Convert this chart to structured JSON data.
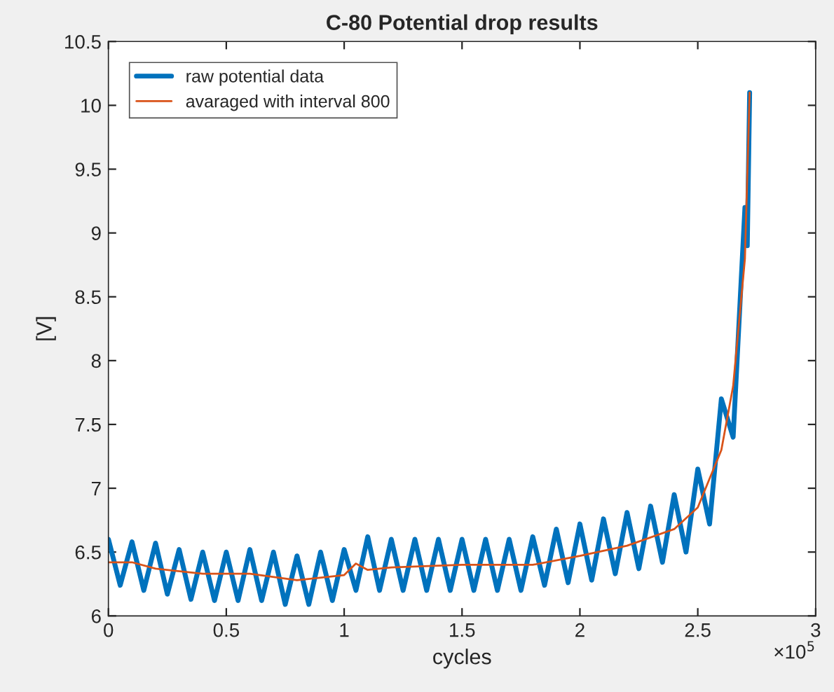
{
  "chart_data": {
    "type": "line",
    "title": "C-80 Potential drop results",
    "xlabel": "cycles",
    "ylabel": "[V]",
    "xlim": [
      0,
      3
    ],
    "xticks": [
      0,
      0.5,
      1,
      1.5,
      2,
      2.5,
      3
    ],
    "ylim": [
      6,
      10.5
    ],
    "yticks": [
      6,
      6.5,
      7,
      7.5,
      8,
      8.5,
      9,
      9.5,
      10,
      10.5
    ],
    "annotations": [
      "×10$^{5}$"
    ],
    "legend": "top left",
    "grid": false,
    "series": [
      {
        "name": "raw potential data",
        "color": "#0072bd",
        "x": [
          0,
          0.05,
          0.1,
          0.15,
          0.2,
          0.25,
          0.3,
          0.35,
          0.4,
          0.45,
          0.5,
          0.55,
          0.6,
          0.65,
          0.7,
          0.75,
          0.8,
          0.85,
          0.9,
          0.95,
          1,
          1.05,
          1.1,
          1.15,
          1.2,
          1.25,
          1.3,
          1.35,
          1.4,
          1.45,
          1.5,
          1.55,
          1.6,
          1.65,
          1.7,
          1.75,
          1.8,
          1.85,
          1.9,
          1.95,
          2,
          2.05,
          2.1,
          2.15,
          2.2,
          2.25,
          2.3,
          2.35,
          2.4,
          2.45,
          2.5,
          2.55,
          2.6,
          2.65,
          2.7,
          2.71,
          2.72
        ],
        "values": [
          6.6,
          6.24,
          6.58,
          6.2,
          6.57,
          6.17,
          6.52,
          6.13,
          6.5,
          6.12,
          6.5,
          6.12,
          6.52,
          6.12,
          6.5,
          6.09,
          6.47,
          6.09,
          6.5,
          6.12,
          6.52,
          6.2,
          6.62,
          6.2,
          6.6,
          6.2,
          6.6,
          6.2,
          6.6,
          6.2,
          6.6,
          6.2,
          6.6,
          6.2,
          6.6,
          6.2,
          6.62,
          6.24,
          6.68,
          6.26,
          6.72,
          6.28,
          6.76,
          6.33,
          6.81,
          6.37,
          6.86,
          6.42,
          6.95,
          6.5,
          7.15,
          6.72,
          7.7,
          7.4,
          9.2,
          8.9,
          10.1
        ]
      },
      {
        "name": "avaraged with interval 800",
        "color": "#d95319",
        "x": [
          0,
          0.1,
          0.2,
          0.4,
          0.6,
          0.8,
          1,
          1.05,
          1.1,
          1.2,
          1.5,
          1.8,
          2,
          2.2,
          2.4,
          2.5,
          2.6,
          2.65,
          2.7,
          2.72
        ],
        "values": [
          6.42,
          6.42,
          6.37,
          6.33,
          6.33,
          6.28,
          6.32,
          6.41,
          6.36,
          6.38,
          6.4,
          6.4,
          6.47,
          6.55,
          6.68,
          6.85,
          7.3,
          7.8,
          8.8,
          10.1
        ]
      }
    ]
  }
}
